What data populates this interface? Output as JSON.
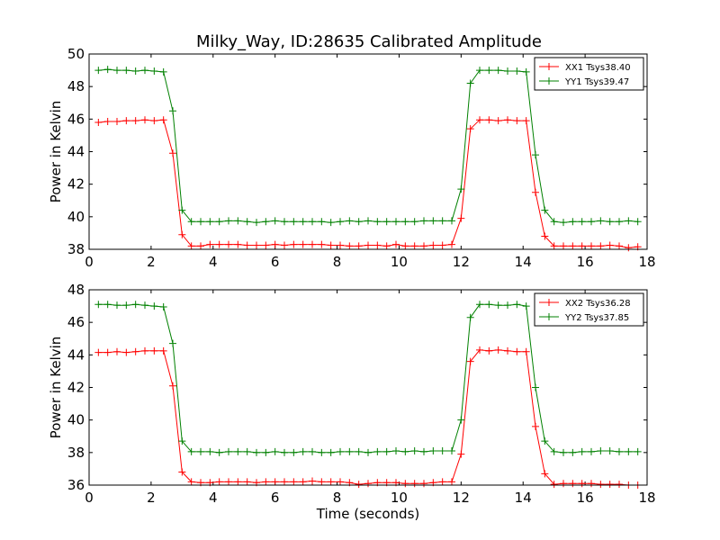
{
  "title": "Milky_Way, ID:28635 Calibrated Amplitude",
  "chart_data": [
    {
      "type": "line",
      "title": "Milky_Way, ID:28635 Calibrated Amplitude",
      "xlabel": "",
      "ylabel": "Power in Kelvin",
      "xlim": [
        0,
        18
      ],
      "ylim": [
        38,
        50
      ],
      "xticks": [
        "0",
        "2",
        "4",
        "6",
        "8",
        "10",
        "12",
        "14",
        "16",
        "18"
      ],
      "yticks": [
        "38",
        "40",
        "42",
        "44",
        "46",
        "48",
        "50"
      ],
      "legend_position": "top-right",
      "x": [
        0.3,
        0.6,
        0.9,
        1.2,
        1.5,
        1.8,
        2.1,
        2.4,
        2.7,
        3.0,
        3.3,
        3.6,
        3.9,
        4.2,
        4.5,
        4.8,
        5.1,
        5.4,
        5.7,
        6.0,
        6.3,
        6.6,
        6.9,
        7.2,
        7.5,
        7.8,
        8.1,
        8.4,
        8.7,
        9.0,
        9.3,
        9.6,
        9.9,
        10.2,
        10.5,
        10.8,
        11.1,
        11.4,
        11.7,
        12.0,
        12.3,
        12.6,
        12.9,
        13.2,
        13.5,
        13.8,
        14.1,
        14.4,
        14.7,
        15.0,
        15.3,
        15.6,
        15.9,
        16.2,
        16.5,
        16.8,
        17.1,
        17.4,
        17.7
      ],
      "series": [
        {
          "name": "XX1 Tsys38.40",
          "color": "#ff0000",
          "values": [
            45.8,
            45.85,
            45.85,
            45.9,
            45.9,
            45.95,
            45.9,
            45.95,
            43.9,
            38.9,
            38.2,
            38.2,
            38.3,
            38.3,
            38.3,
            38.3,
            38.25,
            38.25,
            38.25,
            38.3,
            38.25,
            38.3,
            38.3,
            38.3,
            38.3,
            38.25,
            38.25,
            38.2,
            38.2,
            38.25,
            38.25,
            38.2,
            38.3,
            38.2,
            38.2,
            38.2,
            38.25,
            38.25,
            38.3,
            39.9,
            45.4,
            45.95,
            45.95,
            45.9,
            45.95,
            45.9,
            45.9,
            41.5,
            38.8,
            38.2,
            38.2,
            38.2,
            38.2,
            38.2,
            38.2,
            38.25,
            38.2,
            38.1,
            38.15
          ]
        },
        {
          "name": "YY1 Tsys39.47",
          "color": "#008000",
          "values": [
            49.0,
            49.05,
            49.0,
            49.0,
            48.95,
            49.0,
            48.95,
            48.9,
            46.5,
            40.4,
            39.7,
            39.7,
            39.7,
            39.7,
            39.75,
            39.75,
            39.7,
            39.65,
            39.7,
            39.75,
            39.7,
            39.7,
            39.7,
            39.7,
            39.7,
            39.65,
            39.7,
            39.75,
            39.7,
            39.75,
            39.7,
            39.7,
            39.7,
            39.7,
            39.7,
            39.75,
            39.75,
            39.75,
            39.75,
            41.7,
            48.2,
            49.0,
            49.0,
            49.0,
            48.95,
            48.95,
            48.9,
            43.8,
            40.4,
            39.7,
            39.65,
            39.7,
            39.7,
            39.7,
            39.75,
            39.7,
            39.7,
            39.75,
            39.7
          ]
        }
      ]
    },
    {
      "type": "line",
      "title": "",
      "xlabel": "Time (seconds)",
      "ylabel": "Power in Kelvin",
      "xlim": [
        0,
        18
      ],
      "ylim": [
        36,
        48
      ],
      "xticks": [
        "0",
        "2",
        "4",
        "6",
        "8",
        "10",
        "12",
        "14",
        "16",
        "18"
      ],
      "yticks": [
        "36",
        "38",
        "40",
        "42",
        "44",
        "46",
        "48"
      ],
      "legend_position": "top-right",
      "x": [
        0.3,
        0.6,
        0.9,
        1.2,
        1.5,
        1.8,
        2.1,
        2.4,
        2.7,
        3.0,
        3.3,
        3.6,
        3.9,
        4.2,
        4.5,
        4.8,
        5.1,
        5.4,
        5.7,
        6.0,
        6.3,
        6.6,
        6.9,
        7.2,
        7.5,
        7.8,
        8.1,
        8.4,
        8.7,
        9.0,
        9.3,
        9.6,
        9.9,
        10.2,
        10.5,
        10.8,
        11.1,
        11.4,
        11.7,
        12.0,
        12.3,
        12.6,
        12.9,
        13.2,
        13.5,
        13.8,
        14.1,
        14.4,
        14.7,
        15.0,
        15.3,
        15.6,
        15.9,
        16.2,
        16.5,
        16.8,
        17.1,
        17.4,
        17.7
      ],
      "series": [
        {
          "name": "XX2 Tsys36.28",
          "color": "#ff0000",
          "values": [
            44.15,
            44.15,
            44.2,
            44.15,
            44.2,
            44.25,
            44.25,
            44.25,
            42.1,
            36.8,
            36.2,
            36.15,
            36.15,
            36.2,
            36.2,
            36.2,
            36.2,
            36.15,
            36.2,
            36.2,
            36.2,
            36.2,
            36.2,
            36.25,
            36.2,
            36.2,
            36.2,
            36.15,
            36.05,
            36.1,
            36.15,
            36.15,
            36.15,
            36.1,
            36.1,
            36.1,
            36.15,
            36.2,
            36.2,
            37.9,
            43.6,
            44.3,
            44.25,
            44.3,
            44.25,
            44.2,
            44.2,
            39.6,
            36.7,
            36.05,
            36.1,
            36.1,
            36.1,
            36.1,
            36.05,
            36.05,
            36.05,
            36.0,
            36.0
          ]
        },
        {
          "name": "YY2 Tsys37.85",
          "color": "#008000",
          "values": [
            47.1,
            47.1,
            47.05,
            47.05,
            47.1,
            47.05,
            47.0,
            46.95,
            44.7,
            38.7,
            38.05,
            38.05,
            38.05,
            38.0,
            38.05,
            38.05,
            38.05,
            38.0,
            38.0,
            38.05,
            38.0,
            38.0,
            38.05,
            38.05,
            38.0,
            38.0,
            38.05,
            38.05,
            38.05,
            38.0,
            38.05,
            38.05,
            38.1,
            38.05,
            38.1,
            38.05,
            38.1,
            38.1,
            38.1,
            40.0,
            46.3,
            47.1,
            47.1,
            47.05,
            47.05,
            47.1,
            47.0,
            42.0,
            38.7,
            38.05,
            38.0,
            38.0,
            38.05,
            38.05,
            38.1,
            38.1,
            38.05,
            38.05,
            38.05
          ]
        }
      ]
    }
  ]
}
